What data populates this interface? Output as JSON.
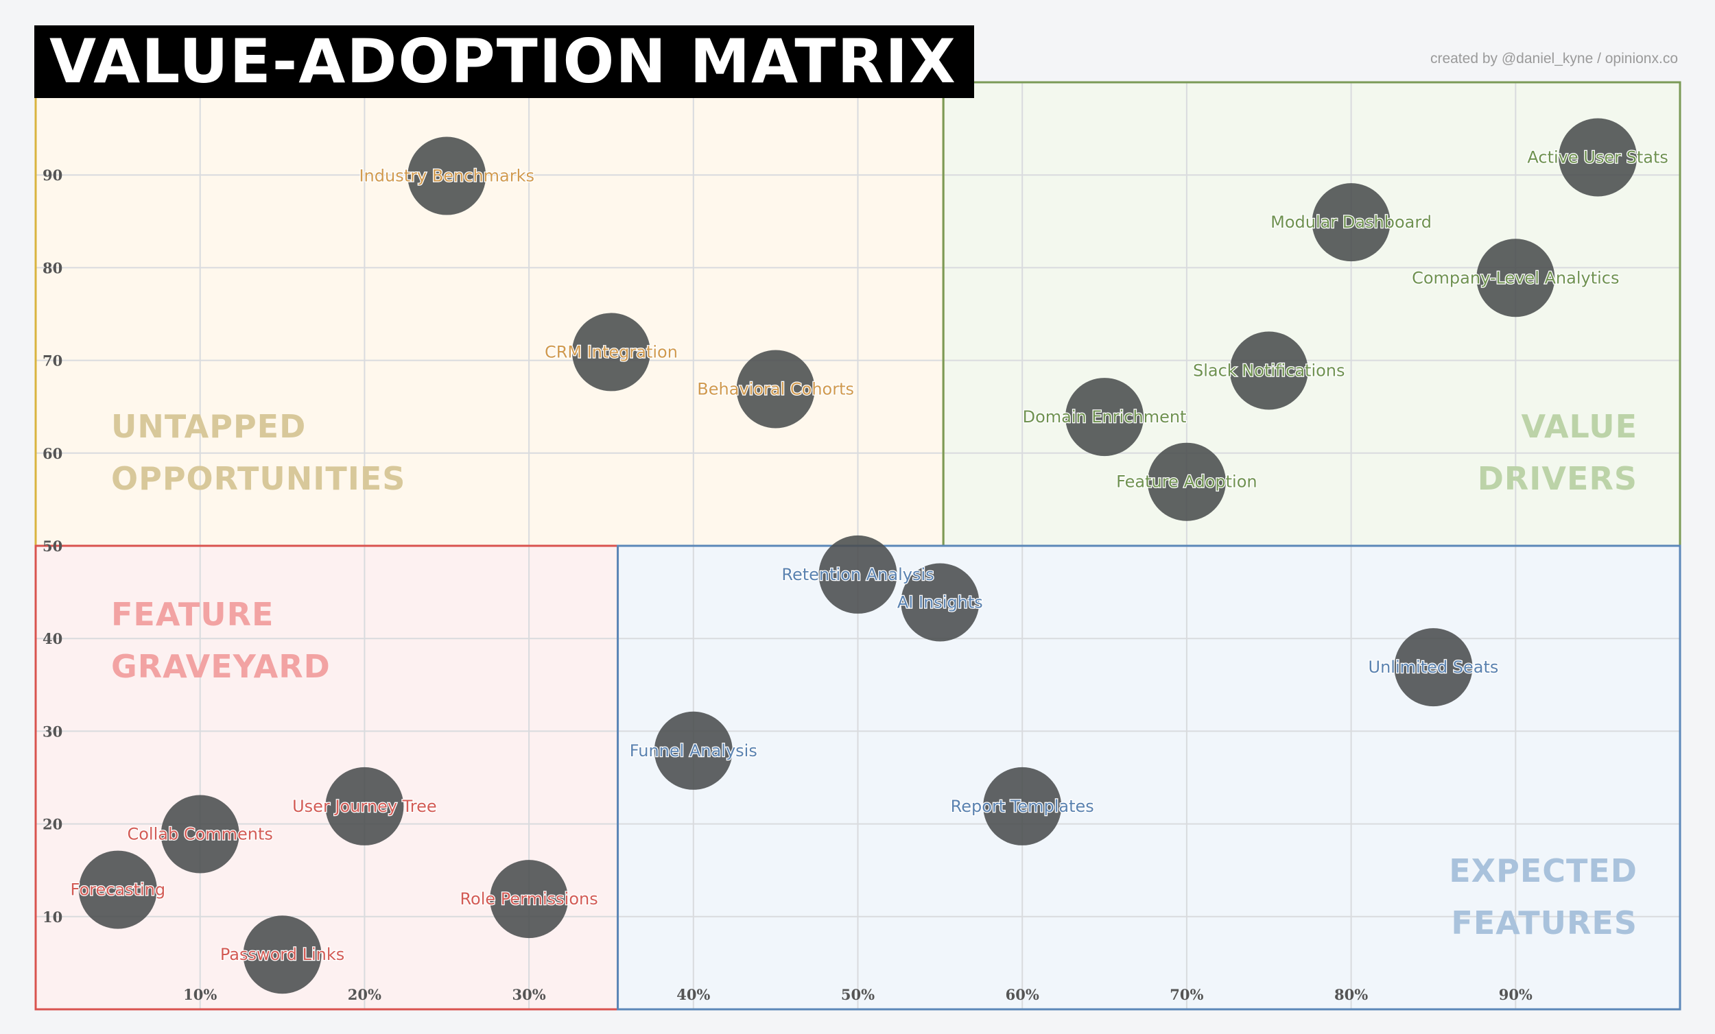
{
  "header": {
    "title": "VALUE-ADOPTION MATRIX",
    "credit": "created by @daniel_kyne / opinionx.co"
  },
  "quadrants": {
    "top_left": {
      "line1": "UNTAPPED",
      "line2": "OPPORTUNITIES",
      "border_color": "#d9b43f",
      "fill_color": "#fff8ed",
      "label_color": "#d8c89a",
      "point_label_color": "#d19a4e"
    },
    "top_right": {
      "line1": "VALUE",
      "line2": "DRIVERS",
      "border_color": "#7a9a56",
      "fill_color": "#f3f8ee",
      "label_color": "#bcd3a8",
      "point_label_color": "#6f9250"
    },
    "bottom_left": {
      "line1": "FEATURE",
      "line2": "GRAVEYARD",
      "border_color": "#d9534f",
      "fill_color": "#fdf1f1",
      "label_color": "#f2a3a3",
      "point_label_color": "#d35b55"
    },
    "bottom_right": {
      "line1": "EXPECTED",
      "line2": "FEATURES",
      "border_color": "#5b87b8",
      "fill_color": "#f1f6fb",
      "label_color": "#a9c2dc",
      "point_label_color": "#5a82b0"
    }
  },
  "chart_data": {
    "type": "scatter",
    "title": "VALUE-ADOPTION MATRIX",
    "xlabel": "",
    "ylabel": "",
    "xlim": [
      0,
      100
    ],
    "ylim": [
      0,
      100
    ],
    "x_ticks": [
      10,
      20,
      30,
      40,
      50,
      60,
      70,
      80,
      90
    ],
    "x_tick_labels": [
      "10%",
      "20%",
      "30%",
      "40%",
      "50%",
      "60%",
      "70%",
      "80%",
      "90%"
    ],
    "y_ticks": [
      10,
      20,
      30,
      40,
      50,
      60,
      70,
      80,
      90
    ],
    "y_tick_labels": [
      "10",
      "20",
      "30",
      "40",
      "50",
      "60",
      "70",
      "80",
      "90"
    ],
    "grid": true,
    "points": [
      {
        "label": "Industry Benchmarks",
        "x": 25,
        "y": 89.9,
        "quadrant": "top_left"
      },
      {
        "label": "CRM Integration",
        "x": 35,
        "y": 70.9,
        "quadrant": "top_left"
      },
      {
        "label": "Behavioral Cohorts",
        "x": 45,
        "y": 66.9,
        "quadrant": "top_left"
      },
      {
        "label": "Active User Stats",
        "x": 95,
        "y": 91.9,
        "quadrant": "top_right"
      },
      {
        "label": "Modular Dashboard",
        "x": 80,
        "y": 84.9,
        "quadrant": "top_right"
      },
      {
        "label": "Company-Level Analytics",
        "x": 90,
        "y": 78.9,
        "quadrant": "top_right"
      },
      {
        "label": "Slack Notifications",
        "x": 75,
        "y": 68.9,
        "quadrant": "top_right"
      },
      {
        "label": "Domain Enrichment",
        "x": 65,
        "y": 63.9,
        "quadrant": "top_right"
      },
      {
        "label": "Feature Adoption",
        "x": 70,
        "y": 56.9,
        "quadrant": "top_right"
      },
      {
        "label": "Retention Analysis",
        "x": 50,
        "y": 46.9,
        "quadrant": "bottom_right"
      },
      {
        "label": "AI Insights",
        "x": 55,
        "y": 43.9,
        "quadrant": "bottom_right"
      },
      {
        "label": "Unlimited Seats",
        "x": 85,
        "y": 36.9,
        "quadrant": "bottom_right"
      },
      {
        "label": "Funnel Analysis",
        "x": 40,
        "y": 27.9,
        "quadrant": "bottom_right"
      },
      {
        "label": "Report Templates",
        "x": 60,
        "y": 21.9,
        "quadrant": "bottom_right"
      },
      {
        "label": "User Journey Tree",
        "x": 20,
        "y": 21.9,
        "quadrant": "bottom_left"
      },
      {
        "label": "Collab Comments",
        "x": 10,
        "y": 18.9,
        "quadrant": "bottom_left"
      },
      {
        "label": "Forecasting",
        "x": 5,
        "y": 12.9,
        "quadrant": "bottom_left"
      },
      {
        "label": "Role Permissions",
        "x": 30,
        "y": 11.9,
        "quadrant": "bottom_left"
      },
      {
        "label": "Password Links",
        "x": 15,
        "y": 5.9,
        "quadrant": "bottom_left"
      }
    ],
    "bubble_color": "#4a4d4f"
  }
}
